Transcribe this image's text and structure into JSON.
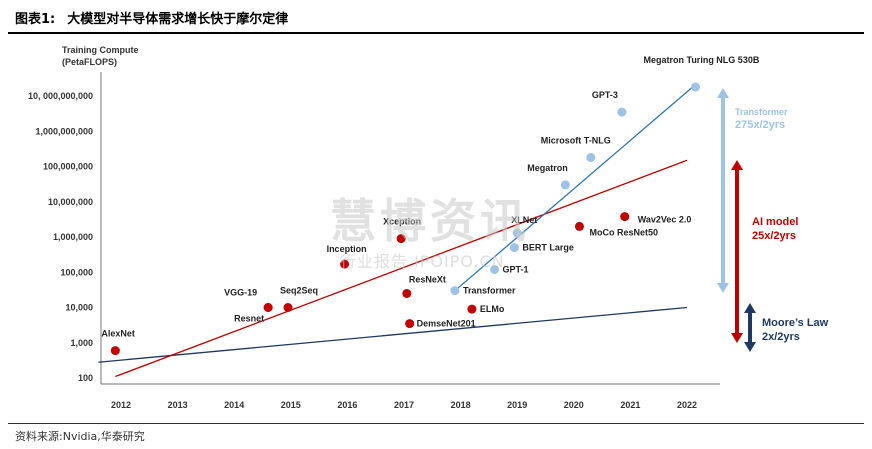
{
  "figure": {
    "number": "图表1:",
    "title": "大模型对半导体需求增长快于摩尔定律"
  },
  "source": {
    "label": "资料来源:",
    "text": "Nvidia",
    "separator": ",",
    "text2": "华泰研究"
  },
  "watermark": {
    "cn": "慧博资讯",
    "en": "行业报告 IPOIPO.CN"
  },
  "chart_data": {
    "type": "scatter",
    "title": "",
    "ylabel_line1": "Training Compute",
    "ylabel_line2": "(PetaFLOPS)",
    "y_scale": "log",
    "ylim": [
      100,
      100000000000
    ],
    "xlim": [
      2012,
      2022
    ],
    "x_ticks": [
      2012,
      2013,
      2014,
      2015,
      2016,
      2017,
      2018,
      2019,
      2020,
      2021,
      2022
    ],
    "y_ticks": [
      {
        "value": 100,
        "label": "100"
      },
      {
        "value": 1000,
        "label": "1,000"
      },
      {
        "value": 10000,
        "label": "10,000"
      },
      {
        "value": 100000,
        "label": "100,000"
      },
      {
        "value": 1000000,
        "label": "1,000,000"
      },
      {
        "value": 10000000,
        "label": "10,000,000"
      },
      {
        "value": 100000000,
        "label": "100,000,000"
      },
      {
        "value": 1000000000,
        "label": "1,000,000,000"
      },
      {
        "value": 10000000000,
        "label": "10, 000,000,000"
      }
    ],
    "grid": false,
    "series": [
      {
        "group": "red",
        "color": "#c00000",
        "points": [
          {
            "name": "AlexNet",
            "x": 2011.9,
            "y": 600
          },
          {
            "name": "VGG-19",
            "x": 2014.6,
            "y": 10000
          },
          {
            "name": "Seq2Seq",
            "x": 2014.95,
            "y": 10000
          },
          {
            "name": "Resnet",
            "x": 2014.6,
            "y": 10000
          },
          {
            "name": "Inception",
            "x": 2015.95,
            "y": 170000
          },
          {
            "name": "Xception",
            "x": 2016.95,
            "y": 900000
          },
          {
            "name": "ResNeXt",
            "x": 2017.05,
            "y": 25000
          },
          {
            "name": "DemseNet201",
            "x": 2017.1,
            "y": 3500
          },
          {
            "name": "ELMo",
            "x": 2018.2,
            "y": 9000
          },
          {
            "name": "MoCo ResNet50",
            "x": 2020.1,
            "y": 2000000
          },
          {
            "name": "Wav2Vec 2.0",
            "x": 2020.9,
            "y": 3800000
          }
        ]
      },
      {
        "group": "blue",
        "color": "#9dc3e6",
        "points": [
          {
            "name": "Transformer",
            "x": 2017.9,
            "y": 30000
          },
          {
            "name": "GPT-1",
            "x": 2018.6,
            "y": 120000
          },
          {
            "name": "BERT Large",
            "x": 2018.95,
            "y": 500000
          },
          {
            "name": "XLNet",
            "x": 2019.0,
            "y": 1300000
          },
          {
            "name": "Megatron",
            "x": 2019.85,
            "y": 30000000
          },
          {
            "name": "Microsoft T-NLG",
            "x": 2020.3,
            "y": 180000000
          },
          {
            "name": "GPT-3",
            "x": 2020.85,
            "y": 3500000000
          },
          {
            "name": "Megatron Turing NLG 530B",
            "x": 2022.15,
            "y": 18000000000
          }
        ]
      }
    ],
    "trend_lines": [
      {
        "name": "Moore's Law",
        "color": "#1f3864",
        "x": [
          2011.6,
          2022
        ],
        "y": [
          280,
          10000
        ]
      },
      {
        "name": "AI model",
        "color": "#c00000",
        "x": [
          2011.9,
          2022
        ],
        "y": [
          110,
          150000000
        ]
      },
      {
        "name": "Transformer",
        "color": "#2e75b6",
        "x": [
          2017.9,
          2022.1
        ],
        "y": [
          30000,
          18000000000
        ]
      }
    ],
    "annotations": [
      {
        "id": "transformer",
        "line1": "Transformer",
        "line2": "275x/2yrs",
        "color": "#9dc3e6"
      },
      {
        "id": "ai_model",
        "line1": "AI model",
        "line2": "25x/2yrs",
        "color": "#c00000"
      },
      {
        "id": "moore",
        "line1": "Moore’s Law",
        "line2": "2x/2yrs",
        "color": "#1f3864"
      }
    ]
  }
}
